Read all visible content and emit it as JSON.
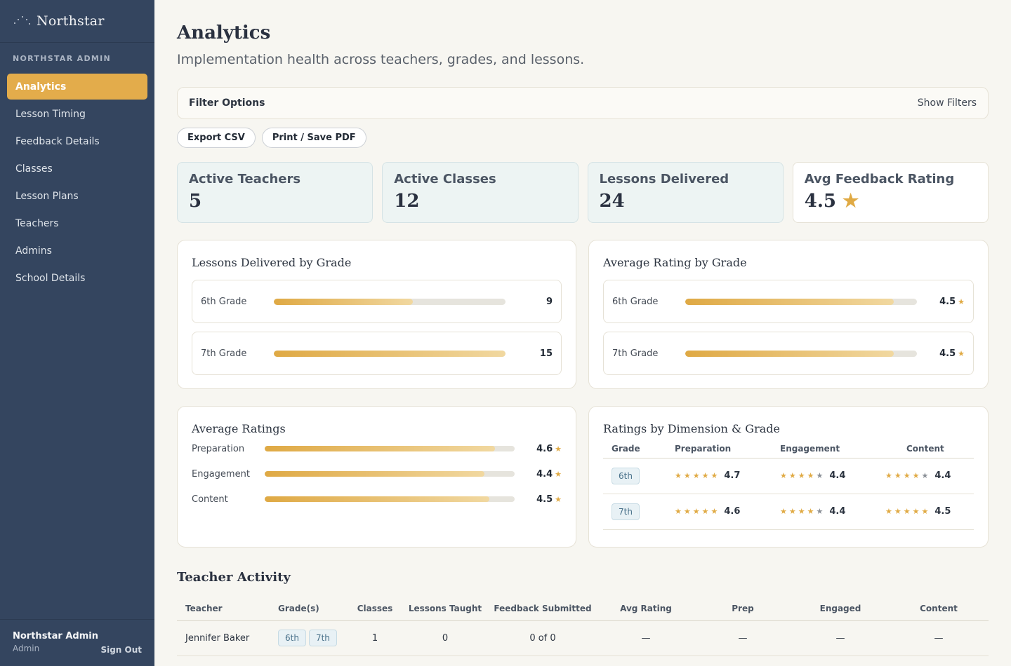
{
  "sidebar": {
    "brand": "Northstar",
    "section_label": "NORTHSTAR ADMIN",
    "items": [
      {
        "label": "Analytics",
        "active": true
      },
      {
        "label": "Lesson Timing"
      },
      {
        "label": "Feedback Details"
      },
      {
        "label": "Classes"
      },
      {
        "label": "Lesson Plans"
      },
      {
        "label": "Teachers"
      },
      {
        "label": "Admins"
      },
      {
        "label": "School Details"
      }
    ],
    "user_name": "Northstar Admin",
    "user_role": "Admin",
    "sign_out": "Sign Out"
  },
  "header": {
    "title": "Analytics",
    "subtitle": "Implementation health across teachers, grades, and lessons."
  },
  "filters": {
    "title": "Filter Options",
    "toggle": "Show Filters"
  },
  "actions": {
    "export_csv": "Export CSV",
    "print_pdf": "Print / Save PDF"
  },
  "stats": [
    {
      "label": "Active Teachers",
      "value": "5"
    },
    {
      "label": "Active Classes",
      "value": "12"
    },
    {
      "label": "Lessons Delivered",
      "value": "24"
    },
    {
      "label": "Avg Feedback Rating",
      "value": "4.5"
    }
  ],
  "lessons_by_grade": {
    "title": "Lessons Delivered by Grade",
    "max": 15,
    "rows": [
      {
        "grade": "6th Grade",
        "value": "9",
        "fraction": 0.6
      },
      {
        "grade": "7th Grade",
        "value": "15",
        "fraction": 1.0
      }
    ]
  },
  "rating_by_grade": {
    "title": "Average Rating by Grade",
    "rows": [
      {
        "grade": "6th Grade",
        "value": "4.5",
        "fraction": 0.9
      },
      {
        "grade": "7th Grade",
        "value": "4.5",
        "fraction": 0.9
      }
    ]
  },
  "average_ratings": {
    "title": "Average Ratings",
    "rows": [
      {
        "label": "Preparation",
        "value": "4.6",
        "fraction": 0.92
      },
      {
        "label": "Engagement",
        "value": "4.4",
        "fraction": 0.88
      },
      {
        "label": "Content",
        "value": "4.5",
        "fraction": 0.9
      }
    ]
  },
  "dimension_grade": {
    "title": "Ratings by Dimension & Grade",
    "headers": {
      "grade": "Grade",
      "prep": "Preparation",
      "engagement": "Engagement",
      "content": "Content"
    },
    "rows": [
      {
        "grade": "6th",
        "prep": "4.7",
        "prep_stars": 5,
        "engagement": "4.4",
        "engagement_stars": 4,
        "content": "4.4",
        "content_stars": 4
      },
      {
        "grade": "7th",
        "prep": "4.6",
        "prep_stars": 5,
        "engagement": "4.4",
        "engagement_stars": 4,
        "content": "4.5",
        "content_stars": 5
      }
    ]
  },
  "teacher_activity": {
    "title": "Teacher Activity",
    "headers": {
      "teacher": "Teacher",
      "grades": "Grade(s)",
      "classes": "Classes",
      "lessons": "Lessons Taught",
      "feedback": "Feedback Submitted",
      "avg": "Avg Rating",
      "prep": "Prep",
      "engaged": "Engaged",
      "content": "Content"
    },
    "rows": [
      {
        "teacher": "Jennifer Baker",
        "grade1": "6th",
        "grade2": "7th",
        "classes": "1",
        "lessons": "0",
        "feedback": "0 of 0",
        "avg": "—",
        "prep": "—",
        "engaged": "—",
        "content": "—"
      }
    ]
  },
  "icons": {
    "brand": "constellation-icon",
    "star": "star-icon"
  },
  "colors": {
    "accent": "#e3ac4b",
    "sidebar": "#34455f",
    "star": "#e0aa44"
  }
}
